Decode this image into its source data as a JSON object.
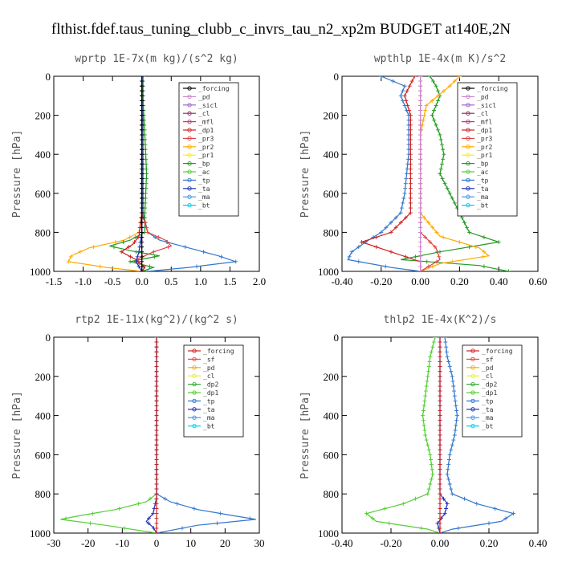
{
  "figure_title": "flthist.fdef.taus_tuning_clubb_c_invrs_tau_n2_xp2m  BUDGET at140E,2N",
  "colors": {
    "forcing": "#000000",
    "pd": "#cc88cc",
    "sicl": "#9966cc",
    "cl": "#883366",
    "mfl": "#bb3377",
    "dp1": "#cc2222",
    "pr3": "#dd4444",
    "pr2": "#ffaa00",
    "pr1": "#eeee33",
    "bp": "#229922",
    "ac": "#55cc33",
    "tp": "#3377cc",
    "ta": "#2233bb",
    "ma": "#4499ee",
    "bt": "#00ccee",
    "sf": "#ee4444",
    "dp2": "#33aa33"
  },
  "chart_data": [
    {
      "type": "line",
      "title": "wprtp  1E-7x(m kg)/(s^2 kg)",
      "ylabel": "Pressure [hPa]",
      "xlim": [
        -1.5,
        2.0
      ],
      "ylim": [
        1000,
        0
      ],
      "xticks": [
        "-1.5",
        "-1.0",
        "-0.5",
        "0.0",
        "0.5",
        "1.0",
        "1.5",
        "2.0"
      ],
      "xtick_values": [
        -1.5,
        -1.0,
        -0.5,
        0.0,
        0.5,
        1.0,
        1.5,
        2.0
      ],
      "yticks": [
        "0",
        "200",
        "400",
        "600",
        "800",
        "1000"
      ],
      "ytick_values": [
        0,
        200,
        400,
        600,
        800,
        1000
      ],
      "legend": [
        "_forcing",
        "_pd",
        "_sicl",
        "_cl",
        "_mfl",
        "_dp1",
        "_pr3",
        "_pr2",
        "_pr1",
        "_bp",
        "_ac",
        "_tp",
        "_ta",
        "_ma",
        "_bt"
      ],
      "series": [
        {
          "name": "_pr2",
          "color_key": "pr2",
          "p": [
            0,
            700,
            800,
            840,
            880,
            920,
            950,
            980,
            1000
          ],
          "x": [
            0,
            0,
            -0.05,
            -0.3,
            -0.9,
            -1.2,
            -1.25,
            -0.6,
            0
          ]
        },
        {
          "name": "_tp",
          "color_key": "tp",
          "p": [
            0,
            700,
            800,
            840,
            880,
            920,
            950,
            980,
            1000
          ],
          "x": [
            0.02,
            0.02,
            0.1,
            0.3,
            0.8,
            1.3,
            1.6,
            0.8,
            0.1
          ]
        },
        {
          "name": "_bp",
          "color_key": "bp",
          "p": [
            0,
            300,
            500,
            700,
            800,
            840,
            870,
            900,
            920,
            950,
            980,
            1000
          ],
          "x": [
            0,
            0.05,
            0.08,
            0.05,
            0.05,
            -0.2,
            -0.55,
            -0.1,
            0.3,
            -0.2,
            0.2,
            0
          ]
        },
        {
          "name": "_pr3",
          "color_key": "pr3",
          "p": [
            0,
            700,
            800,
            840,
            870,
            900,
            940,
            980,
            1000
          ],
          "x": [
            0,
            0,
            0.1,
            0.4,
            0.5,
            0.2,
            -0.1,
            0.05,
            0
          ]
        },
        {
          "name": "_dp1",
          "color_key": "dp1",
          "p": [
            0,
            700,
            820,
            860,
            900,
            940,
            980,
            1000
          ],
          "x": [
            0,
            0,
            -0.05,
            -0.15,
            -0.35,
            -0.1,
            0.05,
            0
          ]
        },
        {
          "name": "_ta",
          "color_key": "ta",
          "p": [
            0,
            800,
            900,
            950,
            1000
          ],
          "x": [
            0,
            0,
            -0.05,
            -0.1,
            0
          ]
        },
        {
          "name": "_forcing",
          "color_key": "forcing",
          "p": [
            0,
            1000
          ],
          "x": [
            0,
            0
          ]
        }
      ]
    },
    {
      "type": "line",
      "title": "wpthlp  1E-4x(m K)/s^2",
      "ylabel": "Pressure [hPa]",
      "xlim": [
        -0.4,
        0.6
      ],
      "ylim": [
        1000,
        0
      ],
      "xticks": [
        "-0.40",
        "-0.20",
        "0.00",
        "0.20",
        "0.40",
        "0.60"
      ],
      "xtick_values": [
        -0.4,
        -0.2,
        0.0,
        0.2,
        0.4,
        0.6
      ],
      "yticks": [
        "0",
        "200",
        "400",
        "600",
        "800",
        "1000"
      ],
      "ytick_values": [
        0,
        200,
        400,
        600,
        800,
        1000
      ],
      "legend": [
        "_forcing",
        "_pd",
        "_sicl",
        "_cl",
        "_mfl",
        "_dp1",
        "_pr3",
        "_pr2",
        "_pr1",
        "_bp",
        "_ac",
        "_tp",
        "_ta",
        "_ma",
        "_bt"
      ],
      "series": [
        {
          "name": "_bp",
          "color_key": "bp",
          "p": [
            0,
            50,
            100,
            200,
            300,
            400,
            500,
            600,
            700,
            800,
            850,
            900,
            940,
            970,
            1000
          ],
          "x": [
            0.05,
            0.08,
            0.1,
            0.06,
            0.1,
            0.12,
            0.1,
            0.15,
            0.2,
            0.25,
            0.4,
            0.1,
            -0.1,
            0.3,
            0.45
          ]
        },
        {
          "name": "_tp",
          "color_key": "tp",
          "p": [
            0,
            50,
            100,
            200,
            400,
            600,
            700,
            800,
            850,
            900,
            940,
            980,
            1000
          ],
          "x": [
            -0.2,
            -0.08,
            -0.1,
            -0.06,
            -0.06,
            -0.08,
            -0.1,
            -0.2,
            -0.28,
            -0.35,
            -0.37,
            -0.15,
            0
          ]
        },
        {
          "name": "_dp1",
          "color_key": "dp1",
          "p": [
            0,
            100,
            200,
            400,
            700,
            800,
            850,
            900,
            950,
            1000
          ],
          "x": [
            -0.03,
            -0.08,
            -0.05,
            -0.05,
            -0.05,
            -0.15,
            -0.3,
            -0.15,
            0,
            0
          ]
        },
        {
          "name": "_pr2",
          "color_key": "pr2",
          "p": [
            0,
            50,
            150,
            300,
            700,
            820,
            880,
            920,
            960,
            1000
          ],
          "x": [
            0.2,
            0.15,
            0.03,
            0,
            0,
            0.1,
            0.3,
            0.35,
            0.1,
            0
          ]
        },
        {
          "name": "_pr3",
          "color_key": "pr3",
          "p": [
            0,
            800,
            880,
            940,
            1000
          ],
          "x": [
            0,
            0,
            0.08,
            0.1,
            0
          ]
        },
        {
          "name": "_pd",
          "color_key": "pd",
          "p": [
            0,
            1000
          ],
          "x": [
            0,
            0
          ]
        }
      ]
    },
    {
      "type": "line",
      "title": "rtp2  1E-11x(kg^2)/(kg^2 s)",
      "ylabel": "Pressure [hPa]",
      "xlim": [
        -30,
        30
      ],
      "ylim": [
        1000,
        0
      ],
      "xticks": [
        "-30",
        "-20",
        "-10",
        "0",
        "10",
        "20",
        "30"
      ],
      "xtick_values": [
        -30,
        -20,
        -10,
        0,
        10,
        20,
        30
      ],
      "yticks": [
        "0",
        "200",
        "400",
        "600",
        "800",
        "1000"
      ],
      "ytick_values": [
        0,
        200,
        400,
        600,
        800,
        1000
      ],
      "legend": [
        "_forcing",
        "_sf",
        "_pd",
        "_cl",
        "_dp2",
        "_dp1",
        "_tp",
        "_ta",
        "_ma",
        "_bt"
      ],
      "series": [
        {
          "name": "_dp1",
          "color_key": "ac",
          "p": [
            0,
            800,
            840,
            880,
            910,
            930,
            960,
            1000
          ],
          "x": [
            0,
            0,
            -3,
            -12,
            -22,
            -28,
            -15,
            0
          ]
        },
        {
          "name": "_tp",
          "color_key": "tp",
          "p": [
            0,
            800,
            840,
            880,
            910,
            930,
            960,
            1000
          ],
          "x": [
            0,
            0,
            4,
            12,
            22,
            29,
            12,
            0
          ]
        },
        {
          "name": "_ta",
          "color_key": "ta",
          "p": [
            0,
            820,
            900,
            940,
            970,
            1000
          ],
          "x": [
            0,
            0,
            -1,
            -3,
            -1,
            0
          ]
        },
        {
          "name": "_forcing",
          "color_key": "dp1",
          "p": [
            0,
            1000
          ],
          "x": [
            0,
            0
          ]
        }
      ]
    },
    {
      "type": "line",
      "title": "thlp2  1E-4x(K^2)/s",
      "ylabel": "Pressure [hPa]",
      "xlim": [
        -0.4,
        0.4
      ],
      "ylim": [
        1000,
        0
      ],
      "xticks": [
        "-0.40",
        "-0.20",
        "0.00",
        "0.20",
        "0.40"
      ],
      "xtick_values": [
        -0.4,
        -0.2,
        0.0,
        0.2,
        0.4
      ],
      "yticks": [
        "0",
        "200",
        "400",
        "600",
        "800",
        "1000"
      ],
      "ytick_values": [
        0,
        200,
        400,
        600,
        800,
        1000
      ],
      "legend": [
        "_forcing",
        "_sf",
        "_pd",
        "_cl",
        "_dp2",
        "_dp1",
        "_tp",
        "_ta",
        "_ma",
        "_bt"
      ],
      "series": [
        {
          "name": "_tp",
          "color_key": "tp",
          "p": [
            0,
            100,
            200,
            300,
            400,
            500,
            600,
            700,
            800,
            850,
            900,
            940,
            980,
            1000
          ],
          "x": [
            0.02,
            0.03,
            0.05,
            0.06,
            0.07,
            0.06,
            0.04,
            0.03,
            0.05,
            0.15,
            0.3,
            0.25,
            0.05,
            0
          ]
        },
        {
          "name": "_dp1",
          "color_key": "ac",
          "p": [
            0,
            100,
            200,
            300,
            400,
            500,
            600,
            700,
            800,
            850,
            900,
            940,
            980,
            1000
          ],
          "x": [
            -0.02,
            -0.04,
            -0.05,
            -0.06,
            -0.07,
            -0.06,
            -0.04,
            -0.03,
            -0.05,
            -0.15,
            -0.3,
            -0.26,
            -0.05,
            0
          ]
        },
        {
          "name": "_ta",
          "color_key": "ta",
          "p": [
            0,
            800,
            850,
            900,
            950,
            1000
          ],
          "x": [
            0,
            0,
            0.03,
            0.02,
            -0.01,
            0
          ]
        },
        {
          "name": "_forcing",
          "color_key": "dp1",
          "p": [
            0,
            1000
          ],
          "x": [
            0,
            0
          ]
        }
      ]
    }
  ]
}
